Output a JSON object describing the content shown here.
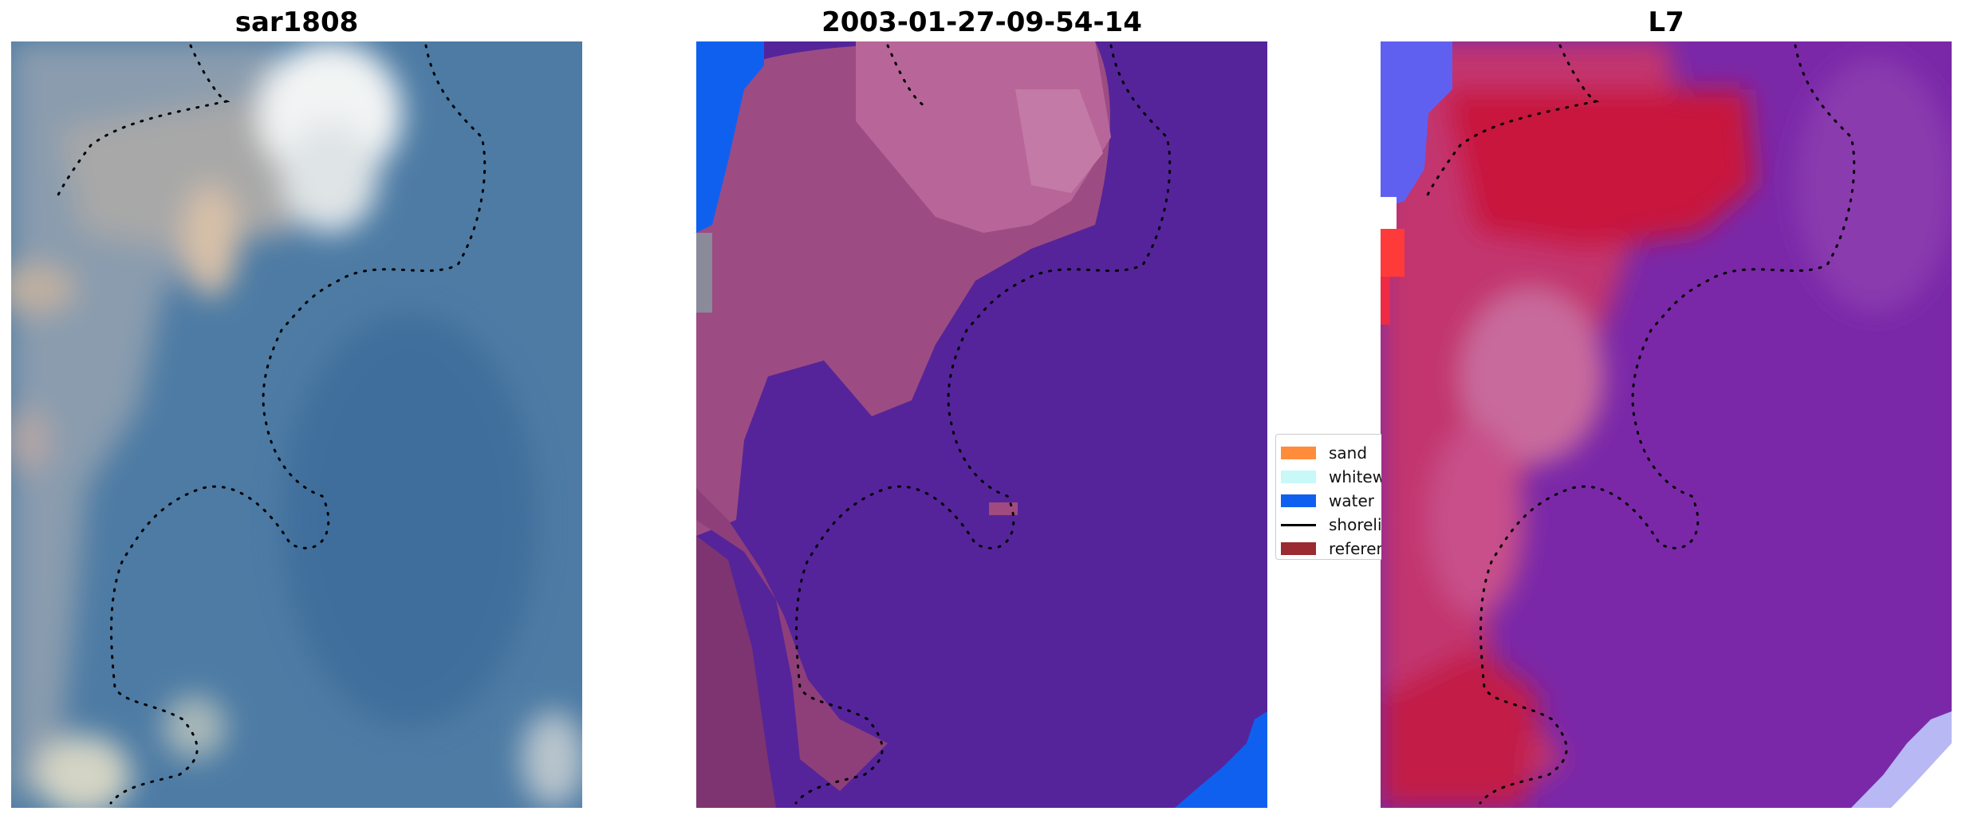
{
  "panels": [
    {
      "title": "sar1808"
    },
    {
      "title": "2003-01-27-09-54-14"
    },
    {
      "title": "L7"
    }
  ],
  "legend": {
    "items": [
      {
        "label": "sand",
        "color": "#ff8c3a",
        "kind": "patch"
      },
      {
        "label": "whitewater",
        "color": "#c8f8f8",
        "kind": "patch"
      },
      {
        "label": "water",
        "color": "#1060f0",
        "kind": "patch"
      },
      {
        "label": "shoreline",
        "color": "#000000",
        "kind": "line"
      },
      {
        "label": "reference",
        "color": "#9a2b30",
        "kind": "patch"
      }
    ]
  },
  "colors": {
    "water_class_purple": "#55249a",
    "land_class_mauve": "#a04a80",
    "pink_highlight": "#c06a9a",
    "l7_red": "#c8143e",
    "l7_purple": "#7a24a8",
    "rgb_blue": "#4a7aa4",
    "rgb_light": "#c8c8c8"
  }
}
